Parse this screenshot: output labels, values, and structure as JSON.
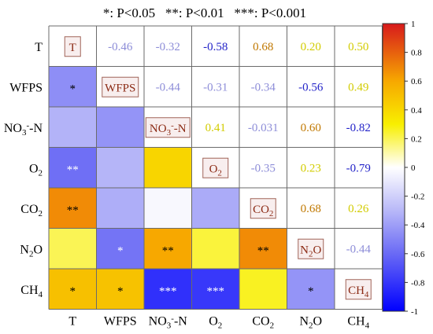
{
  "chart_data": {
    "type": "heatmap",
    "legend_text": "*: P<0.05   **: P<0.01   ***: P<0.001",
    "variables": [
      "T",
      "WFPS",
      "NO3-N",
      "O2",
      "CO2",
      "N2O",
      "CH4"
    ],
    "variable_labels": [
      {
        "base": "T"
      },
      {
        "base": "WFPS"
      },
      {
        "base": "NO",
        "sub": "3",
        "sup": "-",
        "tail": "-N"
      },
      {
        "base": "O",
        "sub": "2"
      },
      {
        "base": "CO",
        "sub": "2"
      },
      {
        "base": "N",
        "sub": "2",
        "tail": "O"
      },
      {
        "base": "CH",
        "sub": "4"
      }
    ],
    "upper_values": [
      [
        null,
        -0.46,
        -0.32,
        -0.58,
        0.68,
        0.2,
        0.5
      ],
      [
        null,
        null,
        -0.44,
        -0.31,
        -0.34,
        -0.56,
        0.49
      ],
      [
        null,
        null,
        null,
        0.41,
        -0.031,
        0.6,
        -0.82
      ],
      [
        null,
        null,
        null,
        null,
        -0.35,
        0.23,
        -0.79
      ],
      [
        null,
        null,
        null,
        null,
        null,
        0.68,
        0.26
      ],
      [
        null,
        null,
        null,
        null,
        null,
        null,
        -0.44
      ],
      [
        null,
        null,
        null,
        null,
        null,
        null,
        null
      ]
    ],
    "upper_labels": [
      [
        "",
        "-0.46",
        "-0.32",
        "-0.58",
        "0.68",
        "0.20",
        "0.50"
      ],
      [
        "",
        "",
        "-0.44",
        "-0.31",
        "-0.34",
        "-0.56",
        "0.49"
      ],
      [
        "",
        "",
        "",
        "0.41",
        "-0.031",
        "0.60",
        "-0.82"
      ],
      [
        "",
        "",
        "",
        "",
        "-0.35",
        "0.23",
        "-0.79"
      ],
      [
        "",
        "",
        "",
        "",
        "",
        "0.68",
        "0.26"
      ],
      [
        "",
        "",
        "",
        "",
        "",
        "",
        "-0.44"
      ],
      [
        "",
        "",
        "",
        "",
        "",
        "",
        ""
      ]
    ],
    "lower_values": [
      [
        null,
        null,
        null,
        null,
        null,
        null,
        null
      ],
      [
        -0.46,
        null,
        null,
        null,
        null,
        null,
        null
      ],
      [
        -0.32,
        -0.44,
        null,
        null,
        null,
        null,
        null
      ],
      [
        -0.58,
        -0.31,
        0.41,
        null,
        null,
        null,
        null
      ],
      [
        0.68,
        -0.34,
        -0.031,
        -0.35,
        null,
        null,
        null
      ],
      [
        0.2,
        -0.56,
        0.6,
        0.23,
        0.68,
        null,
        null
      ],
      [
        0.5,
        0.49,
        -0.82,
        -0.79,
        0.26,
        -0.44,
        null
      ]
    ],
    "significance": [
      [
        "",
        "",
        "",
        "",
        "",
        "",
        ""
      ],
      [
        "*",
        "",
        "",
        "",
        "",
        "",
        ""
      ],
      [
        "",
        "",
        "",
        "",
        "",
        "",
        ""
      ],
      [
        "**",
        "",
        "",
        "",
        "",
        "",
        ""
      ],
      [
        "**",
        "",
        "",
        "",
        "",
        "",
        ""
      ],
      [
        "",
        "*",
        "**",
        "",
        "**",
        "",
        ""
      ],
      [
        "*",
        "*",
        "***",
        "***",
        "",
        "*",
        ""
      ]
    ],
    "colorbar": {
      "min": -1,
      "max": 1,
      "ticks": [
        1,
        0.8,
        0.6,
        0.4,
        0.2,
        0,
        -0.2,
        -0.4,
        -0.6,
        -0.8,
        -1
      ],
      "tick_labels": [
        "1",
        "0.8",
        "0.6",
        "0.4",
        "0.2",
        "0",
        "-0.2",
        "-0.4",
        "-0.6",
        "-0.8",
        "-1"
      ],
      "stops": [
        {
          "v": 1.0,
          "color": "#d7191c"
        },
        {
          "v": 0.6,
          "color": "#f7a800"
        },
        {
          "v": 0.3,
          "color": "#f8ef00"
        },
        {
          "v": 0.0,
          "color": "#ffffff"
        },
        {
          "v": -0.3,
          "color": "#b8b8f8"
        },
        {
          "v": -0.6,
          "color": "#6a6af5"
        },
        {
          "v": -1.0,
          "color": "#0000ff"
        }
      ]
    },
    "text_colors": {
      "positive_strong": "#c07800",
      "positive_weak": "#d2cc00",
      "negative_strong": "#2323c8",
      "negative_weak": "#8d8dd8",
      "diag_text": "#8b2a14",
      "diag_box_border": "#a06458",
      "star_light": "#ffffff",
      "star_dark": "#000000"
    }
  }
}
